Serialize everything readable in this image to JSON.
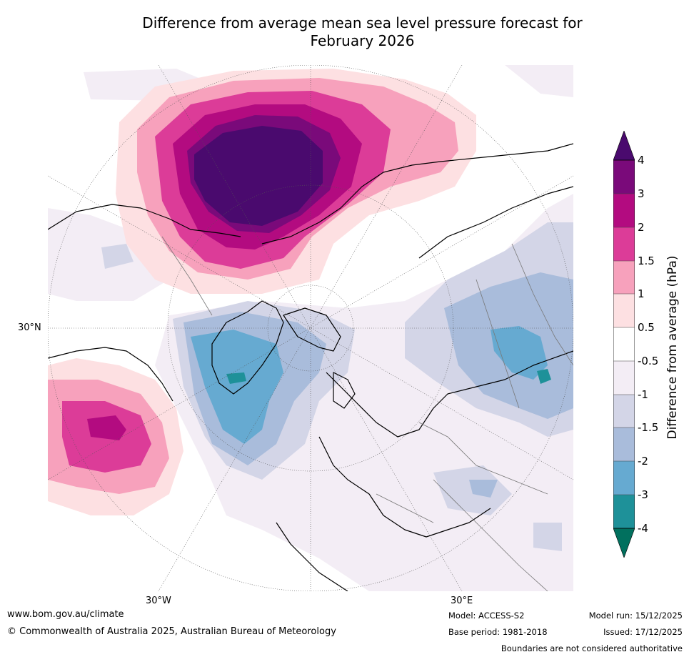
{
  "title": {
    "line1": "Difference from average mean sea level pressure forecast for",
    "line2": "February 2026"
  },
  "map": {
    "region": "Northern hemisphere polar stereographic",
    "labels": {
      "lat_30n": "30°N",
      "lon_30w": "30°W",
      "lon_30e": "30°E"
    }
  },
  "colorbar": {
    "label": "Difference from average (hPa)",
    "ticks": [
      "4",
      "3",
      "2",
      "1.5",
      "1",
      "0.5",
      "-0.5",
      "-1",
      "-1.5",
      "-2",
      "-3",
      "-4"
    ],
    "colors": {
      "above_4": "#4a0a6e",
      "3_to_4": "#7a0a7a",
      "2_to_3": "#b30b80",
      "1.5_to_2": "#dc3c98",
      "1_to_1.5": "#f7a1bc",
      "0.5_to_1": "#fde0e2",
      "neutral": "#ffffff",
      "-1_to_-0.5": "#f3edf5",
      "-1.5_to_-1": "#d3d5e7",
      "-2_to_-1.5": "#a9bcdb",
      "-3_to_-2": "#66aad1",
      "-4_to_-3": "#1e9199",
      "below_-4": "#01705e"
    }
  },
  "footer": {
    "url": "www.bom.gov.au/climate",
    "copyright": "© Commonwealth of Australia 2025, Australian Bureau of Meteorology",
    "model": "Model: ACCESS-S2",
    "base_period": "Base period: 1981-2018",
    "model_run": "Model run: 15/12/2025",
    "issued": "Issued: 17/12/2025",
    "disclaimer": "Boundaries are not considered authoritative"
  }
}
